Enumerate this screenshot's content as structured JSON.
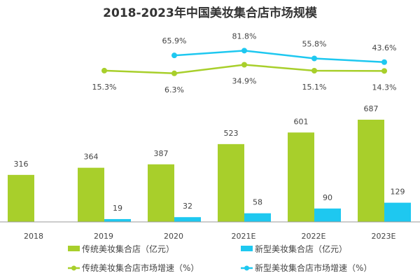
{
  "chart_data": {
    "type": "bar",
    "title": "2018-2023年中国美妆集合店市场规模",
    "categories": [
      "2018",
      "2019",
      "2020",
      "2021E",
      "2022E",
      "2023E"
    ],
    "series": [
      {
        "name": "传统美妆集合店（亿元）",
        "kind": "bar",
        "color": "#a8cf2b",
        "values": [
          316,
          364,
          387,
          523,
          601,
          687
        ]
      },
      {
        "name": "新型美妆集合店（亿元）",
        "kind": "bar",
        "color": "#1ec8f0",
        "values": [
          null,
          19,
          32,
          58,
          90,
          129
        ]
      },
      {
        "name": "传统美妆集合店市场增速（%）",
        "kind": "line",
        "color": "#a8cf2b",
        "values": [
          15.3,
          6.3,
          34.9,
          15.1,
          14.3
        ],
        "x": [
          "2019",
          "2020",
          "2021E",
          "2022E",
          "2023E"
        ],
        "labels": [
          "15.3%",
          "6.3%",
          "34.9%",
          "15.1%",
          "14.3%"
        ]
      },
      {
        "name": "新型美妆集合店市场增速（%）",
        "kind": "line",
        "color": "#1ec8f0",
        "values": [
          65.9,
          81.8,
          55.8,
          43.6
        ],
        "x": [
          "2020",
          "2021E",
          "2022E",
          "2023E"
        ],
        "labels": [
          "65.9%",
          "81.8%",
          "55.8%",
          "43.6%"
        ]
      }
    ],
    "grid": false,
    "legend_placement": "bottom"
  }
}
